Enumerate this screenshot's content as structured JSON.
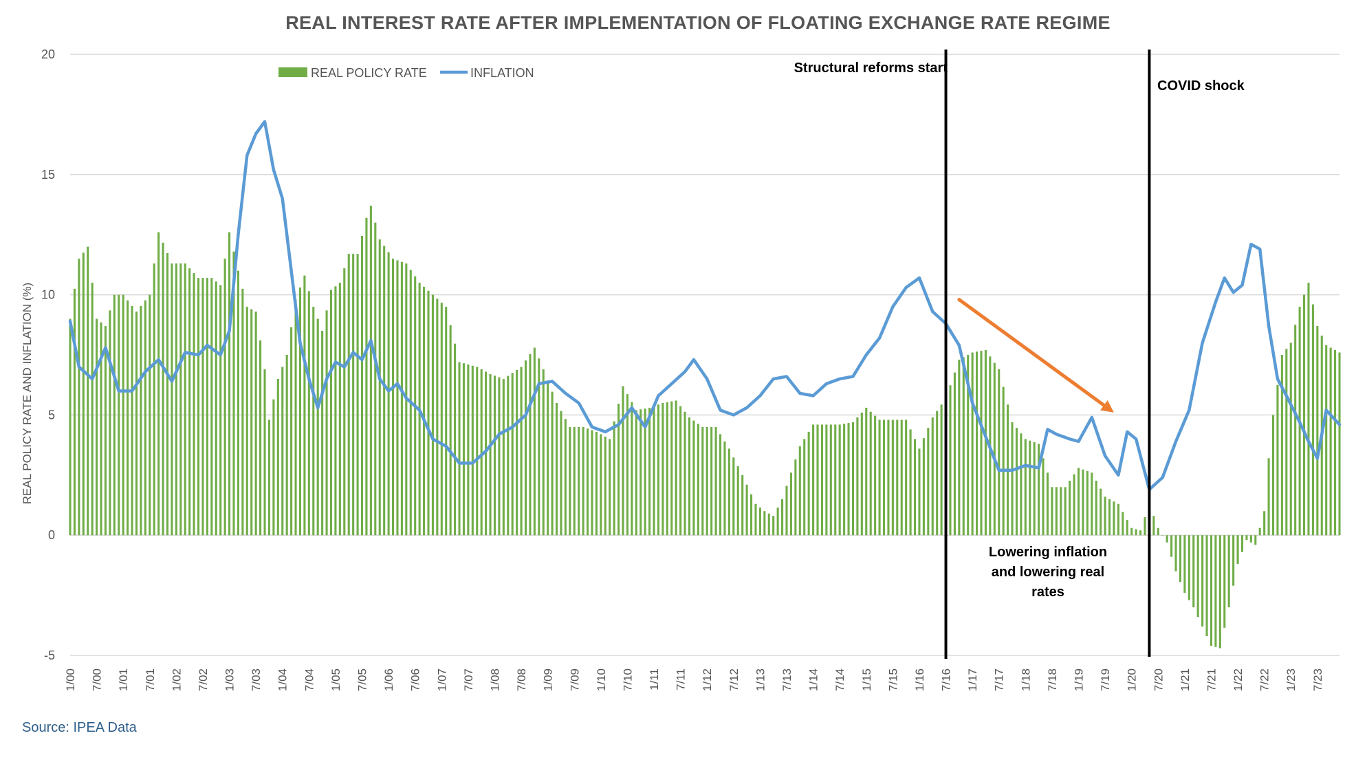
{
  "chart_data": {
    "type": "bar+line",
    "title": "REAL INTEREST RATE AFTER IMPLEMENTATION OF FLOATING EXCHANGE RATE REGIME",
    "ylabel": "REAL POLICY RATE AND INFLATION (%)",
    "xlabel": "",
    "ylim": [
      -5,
      20
    ],
    "yticks": [
      20,
      15,
      10,
      5,
      0,
      -5
    ],
    "grid": true,
    "legend_position": "top-left",
    "start": "2000-01",
    "end": "2023-12",
    "x_tick_labels": [
      "1/00",
      "7/00",
      "1/01",
      "7/01",
      "1/02",
      "7/02",
      "1/03",
      "7/03",
      "1/04",
      "7/04",
      "1/05",
      "7/05",
      "1/06",
      "7/06",
      "1/07",
      "7/07",
      "1/08",
      "7/08",
      "1/09",
      "7/09",
      "1/10",
      "7/10",
      "1/11",
      "7/11",
      "1/12",
      "7/12",
      "1/13",
      "7/13",
      "1/14",
      "7/14",
      "1/15",
      "7/15",
      "1/16",
      "7/16",
      "1/17",
      "7/17",
      "1/18",
      "7/18",
      "1/19",
      "7/19",
      "1/20",
      "7/20",
      "1/21",
      "7/21",
      "1/22",
      "7/22",
      "1/23",
      "7/23"
    ],
    "series": [
      {
        "name": "REAL POLICY RATE",
        "kind": "bar",
        "color": "#70ad47",
        "anchors": [
          [
            "2000-01",
            9.0
          ],
          [
            "2000-03",
            11.5
          ],
          [
            "2000-05",
            12.0
          ],
          [
            "2000-07",
            9.0
          ],
          [
            "2000-09",
            8.7
          ],
          [
            "2000-11",
            10.0
          ],
          [
            "2001-01",
            10.0
          ],
          [
            "2001-04",
            9.3
          ],
          [
            "2001-07",
            10.0
          ],
          [
            "2001-09",
            12.6
          ],
          [
            "2001-12",
            11.3
          ],
          [
            "2002-03",
            11.3
          ],
          [
            "2002-06",
            10.7
          ],
          [
            "2002-09",
            10.7
          ],
          [
            "2002-11",
            10.4
          ],
          [
            "2003-01",
            12.6
          ],
          [
            "2003-03",
            11.0
          ],
          [
            "2003-05",
            9.5
          ],
          [
            "2003-07",
            9.3
          ],
          [
            "2003-09",
            6.9
          ],
          [
            "2003-10",
            4.8
          ],
          [
            "2003-12",
            6.5
          ],
          [
            "2004-02",
            7.5
          ],
          [
            "2004-04",
            9.8
          ],
          [
            "2004-06",
            10.8
          ],
          [
            "2004-08",
            9.5
          ],
          [
            "2004-10",
            8.5
          ],
          [
            "2004-12",
            10.2
          ],
          [
            "2005-02",
            10.5
          ],
          [
            "2005-04",
            11.7
          ],
          [
            "2005-06",
            11.7
          ],
          [
            "2005-08",
            13.2
          ],
          [
            "2005-09",
            13.7
          ],
          [
            "2005-11",
            12.3
          ],
          [
            "2006-02",
            11.5
          ],
          [
            "2006-05",
            11.3
          ],
          [
            "2006-08",
            10.5
          ],
          [
            "2006-11",
            10.0
          ],
          [
            "2007-02",
            9.5
          ],
          [
            "2007-05",
            7.2
          ],
          [
            "2007-09",
            7.0
          ],
          [
            "2007-12",
            6.7
          ],
          [
            "2008-03",
            6.5
          ],
          [
            "2008-07",
            7.0
          ],
          [
            "2008-10",
            7.8
          ],
          [
            "2008-12",
            6.9
          ],
          [
            "2009-03",
            5.5
          ],
          [
            "2009-06",
            4.5
          ],
          [
            "2009-09",
            4.5
          ],
          [
            "2009-12",
            4.3
          ],
          [
            "2010-03",
            4.0
          ],
          [
            "2010-06",
            6.2
          ],
          [
            "2010-09",
            5.2
          ],
          [
            "2010-12",
            5.3
          ],
          [
            "2011-03",
            5.5
          ],
          [
            "2011-06",
            5.6
          ],
          [
            "2011-09",
            4.9
          ],
          [
            "2011-12",
            4.5
          ],
          [
            "2012-03",
            4.5
          ],
          [
            "2012-06",
            3.6
          ],
          [
            "2012-09",
            2.5
          ],
          [
            "2012-12",
            1.3
          ],
          [
            "2013-02",
            1.0
          ],
          [
            "2013-04",
            0.8
          ],
          [
            "2013-06",
            1.5
          ],
          [
            "2013-08",
            2.6
          ],
          [
            "2013-10",
            3.7
          ],
          [
            "2014-01",
            4.6
          ],
          [
            "2014-04",
            4.6
          ],
          [
            "2014-07",
            4.6
          ],
          [
            "2014-10",
            4.7
          ],
          [
            "2015-01",
            5.3
          ],
          [
            "2015-04",
            4.8
          ],
          [
            "2015-07",
            4.8
          ],
          [
            "2015-10",
            4.8
          ],
          [
            "2016-01",
            3.6
          ],
          [
            "2016-04",
            4.9
          ],
          [
            "2016-07",
            5.7
          ],
          [
            "2016-10",
            7.3
          ],
          [
            "2017-01",
            7.6
          ],
          [
            "2017-04",
            7.7
          ],
          [
            "2017-07",
            6.9
          ],
          [
            "2017-10",
            4.7
          ],
          [
            "2018-01",
            4.0
          ],
          [
            "2018-04",
            3.8
          ],
          [
            "2018-07",
            2.0
          ],
          [
            "2018-10",
            2.0
          ],
          [
            "2019-01",
            2.8
          ],
          [
            "2019-04",
            2.6
          ],
          [
            "2019-07",
            1.6
          ],
          [
            "2019-10",
            1.3
          ],
          [
            "2020-01",
            0.3
          ],
          [
            "2020-03",
            0.2
          ],
          [
            "2020-05",
            1.3
          ],
          [
            "2020-07",
            0.3
          ],
          [
            "2020-09",
            -0.3
          ],
          [
            "2020-11",
            -1.5
          ],
          [
            "2021-01",
            -2.4
          ],
          [
            "2021-03",
            -3.0
          ],
          [
            "2021-05",
            -3.8
          ],
          [
            "2021-07",
            -4.6
          ],
          [
            "2021-09",
            -4.7
          ],
          [
            "2021-11",
            -3.0
          ],
          [
            "2022-01",
            -1.2
          ],
          [
            "2022-03",
            -0.2
          ],
          [
            "2022-05",
            -0.4
          ],
          [
            "2022-07",
            1.0
          ],
          [
            "2022-08",
            3.2
          ],
          [
            "2022-09",
            5.0
          ],
          [
            "2022-11",
            7.5
          ],
          [
            "2023-01",
            8.0
          ],
          [
            "2023-03",
            9.5
          ],
          [
            "2023-05",
            10.5
          ],
          [
            "2023-07",
            8.7
          ],
          [
            "2023-09",
            7.9
          ],
          [
            "2023-12",
            7.6
          ]
        ]
      },
      {
        "name": "INFLATION",
        "kind": "line",
        "color": "#5b9bd5",
        "anchors": [
          [
            "2000-01",
            8.9
          ],
          [
            "2000-03",
            7.0
          ],
          [
            "2000-06",
            6.5
          ],
          [
            "2000-09",
            7.8
          ],
          [
            "2000-12",
            6.0
          ],
          [
            "2001-03",
            6.0
          ],
          [
            "2001-06",
            6.8
          ],
          [
            "2001-09",
            7.3
          ],
          [
            "2001-12",
            6.4
          ],
          [
            "2002-03",
            7.6
          ],
          [
            "2002-06",
            7.5
          ],
          [
            "2002-08",
            7.9
          ],
          [
            "2002-11",
            7.5
          ],
          [
            "2003-01",
            8.5
          ],
          [
            "2003-03",
            12.5
          ],
          [
            "2003-05",
            15.8
          ],
          [
            "2003-07",
            16.7
          ],
          [
            "2003-09",
            17.2
          ],
          [
            "2003-11",
            15.2
          ],
          [
            "2004-01",
            14.0
          ],
          [
            "2004-03",
            11.0
          ],
          [
            "2004-05",
            8.0
          ],
          [
            "2004-07",
            6.5
          ],
          [
            "2004-09",
            5.3
          ],
          [
            "2004-11",
            6.5
          ],
          [
            "2005-01",
            7.2
          ],
          [
            "2005-03",
            7.0
          ],
          [
            "2005-05",
            7.6
          ],
          [
            "2005-07",
            7.3
          ],
          [
            "2005-09",
            8.1
          ],
          [
            "2005-11",
            6.5
          ],
          [
            "2006-01",
            6.0
          ],
          [
            "2006-03",
            6.3
          ],
          [
            "2006-05",
            5.7
          ],
          [
            "2006-08",
            5.2
          ],
          [
            "2006-11",
            4.0
          ],
          [
            "2007-02",
            3.7
          ],
          [
            "2007-05",
            3.0
          ],
          [
            "2007-08",
            3.0
          ],
          [
            "2007-11",
            3.5
          ],
          [
            "2008-02",
            4.2
          ],
          [
            "2008-05",
            4.5
          ],
          [
            "2008-08",
            5.0
          ],
          [
            "2008-11",
            6.3
          ],
          [
            "2009-02",
            6.4
          ],
          [
            "2009-05",
            5.9
          ],
          [
            "2009-08",
            5.5
          ],
          [
            "2009-11",
            4.5
          ],
          [
            "2010-02",
            4.3
          ],
          [
            "2010-05",
            4.6
          ],
          [
            "2010-08",
            5.3
          ],
          [
            "2010-11",
            4.5
          ],
          [
            "2011-02",
            5.8
          ],
          [
            "2011-05",
            6.3
          ],
          [
            "2011-08",
            6.8
          ],
          [
            "2011-10",
            7.3
          ],
          [
            "2012-01",
            6.5
          ],
          [
            "2012-04",
            5.2
          ],
          [
            "2012-07",
            5.0
          ],
          [
            "2012-10",
            5.3
          ],
          [
            "2013-01",
            5.8
          ],
          [
            "2013-04",
            6.5
          ],
          [
            "2013-07",
            6.6
          ],
          [
            "2013-10",
            5.9
          ],
          [
            "2014-01",
            5.8
          ],
          [
            "2014-04",
            6.3
          ],
          [
            "2014-07",
            6.5
          ],
          [
            "2014-10",
            6.6
          ],
          [
            "2015-01",
            7.5
          ],
          [
            "2015-04",
            8.2
          ],
          [
            "2015-07",
            9.5
          ],
          [
            "2015-10",
            10.3
          ],
          [
            "2016-01",
            10.7
          ],
          [
            "2016-04",
            9.3
          ],
          [
            "2016-07",
            8.8
          ],
          [
            "2016-10",
            7.9
          ],
          [
            "2017-01",
            5.5
          ],
          [
            "2017-04",
            4.1
          ],
          [
            "2017-07",
            2.7
          ],
          [
            "2017-10",
            2.7
          ],
          [
            "2018-01",
            2.9
          ],
          [
            "2018-04",
            2.8
          ],
          [
            "2018-06",
            4.4
          ],
          [
            "2018-08",
            4.2
          ],
          [
            "2018-11",
            4.0
          ],
          [
            "2019-01",
            3.9
          ],
          [
            "2019-04",
            4.9
          ],
          [
            "2019-07",
            3.3
          ],
          [
            "2019-10",
            2.5
          ],
          [
            "2019-12",
            4.3
          ],
          [
            "2020-02",
            4.0
          ],
          [
            "2020-05",
            1.9
          ],
          [
            "2020-08",
            2.4
          ],
          [
            "2020-11",
            3.9
          ],
          [
            "2021-02",
            5.2
          ],
          [
            "2021-05",
            8.0
          ],
          [
            "2021-08",
            9.7
          ],
          [
            "2021-10",
            10.7
          ],
          [
            "2021-12",
            10.1
          ],
          [
            "2022-02",
            10.4
          ],
          [
            "2022-04",
            12.1
          ],
          [
            "2022-06",
            11.9
          ],
          [
            "2022-08",
            8.7
          ],
          [
            "2022-10",
            6.5
          ],
          [
            "2022-12",
            5.8
          ],
          [
            "2023-03",
            4.7
          ],
          [
            "2023-05",
            3.9
          ],
          [
            "2023-07",
            3.2
          ],
          [
            "2023-09",
            5.2
          ],
          [
            "2023-12",
            4.6
          ]
        ]
      }
    ],
    "annotations": {
      "structural_reforms": {
        "label": "Structural reforms start",
        "date": "2016-07"
      },
      "covid": {
        "label": "COVID shock",
        "date": "2020-05"
      },
      "lowering_lines": [
        "Lowering inflation",
        "and lowering real",
        "rates"
      ],
      "arrow": {
        "from": [
          "2016-10",
          9.8
        ],
        "to": [
          "2019-09",
          5.1
        ],
        "color": "#ed7d31"
      }
    }
  },
  "source": "Source: IPEA Data"
}
